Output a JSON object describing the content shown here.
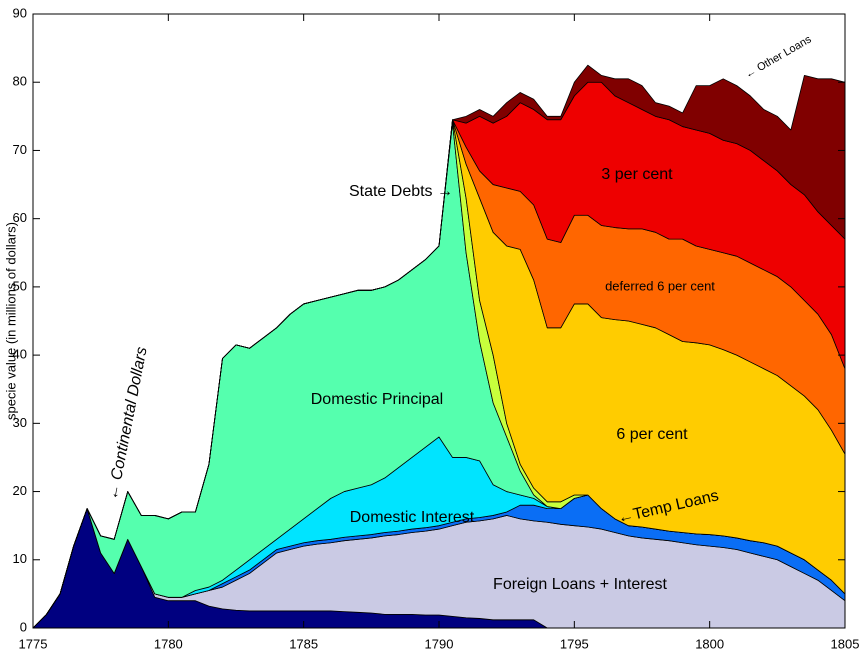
{
  "chart_data": {
    "type": "stacked_area",
    "y_label": "specie value (in millions of dollars)",
    "xlim": [
      1775,
      1805
    ],
    "ylim": [
      0,
      90
    ],
    "xticks": [
      1775,
      1780,
      1785,
      1790,
      1795,
      1800,
      1805
    ],
    "yticks": [
      0,
      10,
      20,
      30,
      40,
      50,
      60,
      70,
      80,
      90
    ],
    "x": [
      1775,
      1775.5,
      1776,
      1776.5,
      1777,
      1777.5,
      1778,
      1778.5,
      1779,
      1779.5,
      1780,
      1780.5,
      1781,
      1781.5,
      1782,
      1782.5,
      1783,
      1783.5,
      1784,
      1784.5,
      1785,
      1785.5,
      1786,
      1786.5,
      1787,
      1787.5,
      1788,
      1788.5,
      1789,
      1789.5,
      1790,
      1790.5,
      1791,
      1791.5,
      1792,
      1792.5,
      1793,
      1793.5,
      1794,
      1794.5,
      1795,
      1795.5,
      1796,
      1796.5,
      1797,
      1797.5,
      1798,
      1798.5,
      1799,
      1799.5,
      1800,
      1800.5,
      1801,
      1801.5,
      1802,
      1802.5,
      1803,
      1803.5,
      1804,
      1804.5,
      1805
    ],
    "series": [
      {
        "name": "← Continental Dollars",
        "color": "#000080",
        "values": [
          0,
          2,
          5,
          12,
          17.5,
          11,
          8,
          13,
          9,
          4.5,
          4,
          4,
          4,
          3.2,
          2.8,
          2.6,
          2.5,
          2.5,
          2.5,
          2.5,
          2.5,
          2.5,
          2.5,
          2.4,
          2.3,
          2.2,
          2,
          2,
          2,
          1.9,
          1.9,
          1.7,
          1.5,
          1.4,
          1.2,
          1.2,
          1.2,
          1.2,
          0,
          0,
          0,
          0,
          0,
          0,
          0,
          0,
          0,
          0,
          0,
          0,
          0,
          0,
          0,
          0,
          0,
          0,
          0,
          0,
          0,
          0,
          0
        ]
      },
      {
        "name": "Foreign Loans + Interest",
        "color": "#cacae4",
        "values": [
          0,
          0,
          0,
          0,
          0,
          0,
          0,
          0,
          0,
          0.5,
          0.5,
          0.5,
          1,
          2.3,
          3.2,
          4.4,
          5.5,
          7,
          8.5,
          9,
          9.5,
          9.8,
          10,
          10.4,
          10.7,
          11,
          11.5,
          11.7,
          12,
          12.3,
          12.6,
          13.3,
          14,
          14.3,
          14.8,
          15.3,
          14.8,
          14.5,
          15.5,
          15.2,
          15,
          14.8,
          14.5,
          14,
          13.5,
          13.2,
          13,
          12.8,
          12.5,
          12.2,
          12,
          11.8,
          11.5,
          11,
          10.5,
          10,
          9,
          8,
          7,
          5.5,
          4
        ]
      },
      {
        "name": "←Temp Loans",
        "color": "#0a6ef5",
        "values": [
          0,
          0,
          0,
          0,
          0,
          0,
          0,
          0,
          0,
          0,
          0,
          0,
          0,
          0,
          0.5,
          0.5,
          0.5,
          0.5,
          0.5,
          0.5,
          0.5,
          0.5,
          0.5,
          0.5,
          0.5,
          0.5,
          0.5,
          0.5,
          0.5,
          0.5,
          0.5,
          0.5,
          0.5,
          0.5,
          0.5,
          0.5,
          2,
          2.3,
          2,
          2.3,
          4,
          4.7,
          3,
          2,
          1.5,
          1.6,
          1.5,
          1.4,
          1.5,
          1.6,
          1.7,
          1.7,
          1.7,
          1.8,
          2,
          2,
          2,
          2,
          1.5,
          1.5,
          1
        ]
      },
      {
        "name": "Domestic Interest",
        "color": "#00e4ff",
        "values": [
          0,
          0,
          0,
          0,
          0,
          0,
          0,
          0,
          0,
          0,
          0,
          0,
          0.5,
          0.5,
          0.5,
          1,
          1.5,
          1.5,
          1.5,
          2.5,
          3.5,
          4.7,
          6,
          6.7,
          7,
          7.3,
          8,
          9.3,
          10.5,
          11.8,
          13,
          9.5,
          9,
          8.3,
          4.5,
          3,
          1.5,
          1,
          0.3,
          0,
          0,
          0,
          0,
          0,
          0,
          0,
          0,
          0,
          0,
          0,
          0,
          0,
          0,
          0,
          0,
          0,
          0,
          0,
          0,
          0,
          0
        ]
      },
      {
        "name": "Domestic Principal",
        "color": "#55ffae",
        "values": [
          0,
          0,
          0,
          0,
          0,
          2.5,
          5,
          7,
          7.5,
          11.5,
          11.5,
          12.5,
          11.5,
          18,
          32.5,
          33,
          31,
          31,
          31,
          31.5,
          31.5,
          30.5,
          29.5,
          29,
          29,
          28.5,
          28,
          27.5,
          27.5,
          27.5,
          28,
          49,
          30,
          17.5,
          12,
          8,
          3.5,
          0.5,
          0,
          0,
          0,
          0,
          0,
          0,
          0,
          0,
          0,
          0,
          0,
          0,
          0,
          0,
          0,
          0,
          0,
          0,
          0,
          0,
          0,
          0,
          0
        ]
      },
      {
        "name": "State Debts →",
        "color": "#c8ff3c",
        "values": [
          0,
          0,
          0,
          0,
          0,
          0,
          0,
          0,
          0,
          0,
          0,
          0,
          0,
          0,
          0,
          0,
          0,
          0,
          0,
          0,
          0,
          0,
          0,
          0,
          0,
          0,
          0,
          0,
          0,
          0,
          0,
          0.5,
          8,
          6,
          7,
          2,
          1,
          1,
          0.7,
          1,
          0.5,
          0,
          0,
          0,
          0,
          0,
          0,
          0,
          0,
          0,
          0,
          0,
          0,
          0,
          0,
          0,
          0,
          0,
          0,
          0,
          0
        ]
      },
      {
        "name": "6 per cent",
        "color": "#ffcc00",
        "values": [
          0,
          0,
          0,
          0,
          0,
          0,
          0,
          0,
          0,
          0,
          0,
          0,
          0,
          0,
          0,
          0,
          0,
          0,
          0,
          0,
          0,
          0,
          0,
          0,
          0,
          0,
          0,
          0,
          0,
          0,
          0,
          0,
          5,
          15,
          18,
          26,
          31.5,
          30.5,
          25.5,
          25.5,
          28,
          28,
          28,
          29.2,
          30,
          29.7,
          29.5,
          28.8,
          28,
          28,
          27.8,
          27.3,
          26.8,
          26.2,
          25.5,
          25,
          24.5,
          24,
          23.5,
          22,
          20.5
        ]
      },
      {
        "name": "deferred 6 per cent",
        "color": "#ff6600",
        "values": [
          0,
          0,
          0,
          0,
          0,
          0,
          0,
          0,
          0,
          0,
          0,
          0,
          0,
          0,
          0,
          0,
          0,
          0,
          0,
          0,
          0,
          0,
          0,
          0,
          0,
          0,
          0,
          0,
          0,
          0,
          0,
          0,
          2.5,
          4,
          7,
          8.5,
          8.5,
          11,
          13,
          12.5,
          13,
          13,
          13.5,
          13.5,
          13.5,
          14,
          14,
          14,
          15,
          14.2,
          14,
          14.2,
          14.5,
          14.5,
          14.5,
          14.5,
          14.5,
          14,
          14,
          14,
          12.5
        ]
      },
      {
        "name": "3 per cent",
        "color": "#ee0000",
        "values": [
          0,
          0,
          0,
          0,
          0,
          0,
          0,
          0,
          0,
          0,
          0,
          0,
          0,
          0,
          0,
          0,
          0,
          0,
          0,
          0,
          0,
          0,
          0,
          0,
          0,
          0,
          0,
          0,
          0,
          0,
          0,
          0,
          3.5,
          8,
          9,
          10.5,
          13,
          14,
          17.5,
          18,
          17.5,
          19.5,
          21,
          19.3,
          18.5,
          17.5,
          17,
          17.5,
          16.5,
          17,
          17,
          16.5,
          16.5,
          16.5,
          16,
          15.5,
          15,
          15.5,
          15,
          16,
          19
        ]
      },
      {
        "name": "← Other Loans",
        "color": "#800000",
        "values": [
          0,
          0,
          0,
          0,
          0,
          0,
          0,
          0,
          0,
          0,
          0,
          0,
          0,
          0,
          0,
          0,
          0,
          0,
          0,
          0,
          0,
          0,
          0,
          0,
          0,
          0,
          0,
          0,
          0,
          0,
          0,
          0,
          1,
          1,
          1,
          2,
          1.5,
          1.5,
          0.5,
          0.5,
          2,
          2.5,
          1,
          2.5,
          3.5,
          3.5,
          2,
          2,
          2,
          6.5,
          7,
          9,
          8.5,
          8,
          7.5,
          8,
          8,
          17.5,
          19.5,
          21.5,
          23
        ]
      }
    ]
  }
}
